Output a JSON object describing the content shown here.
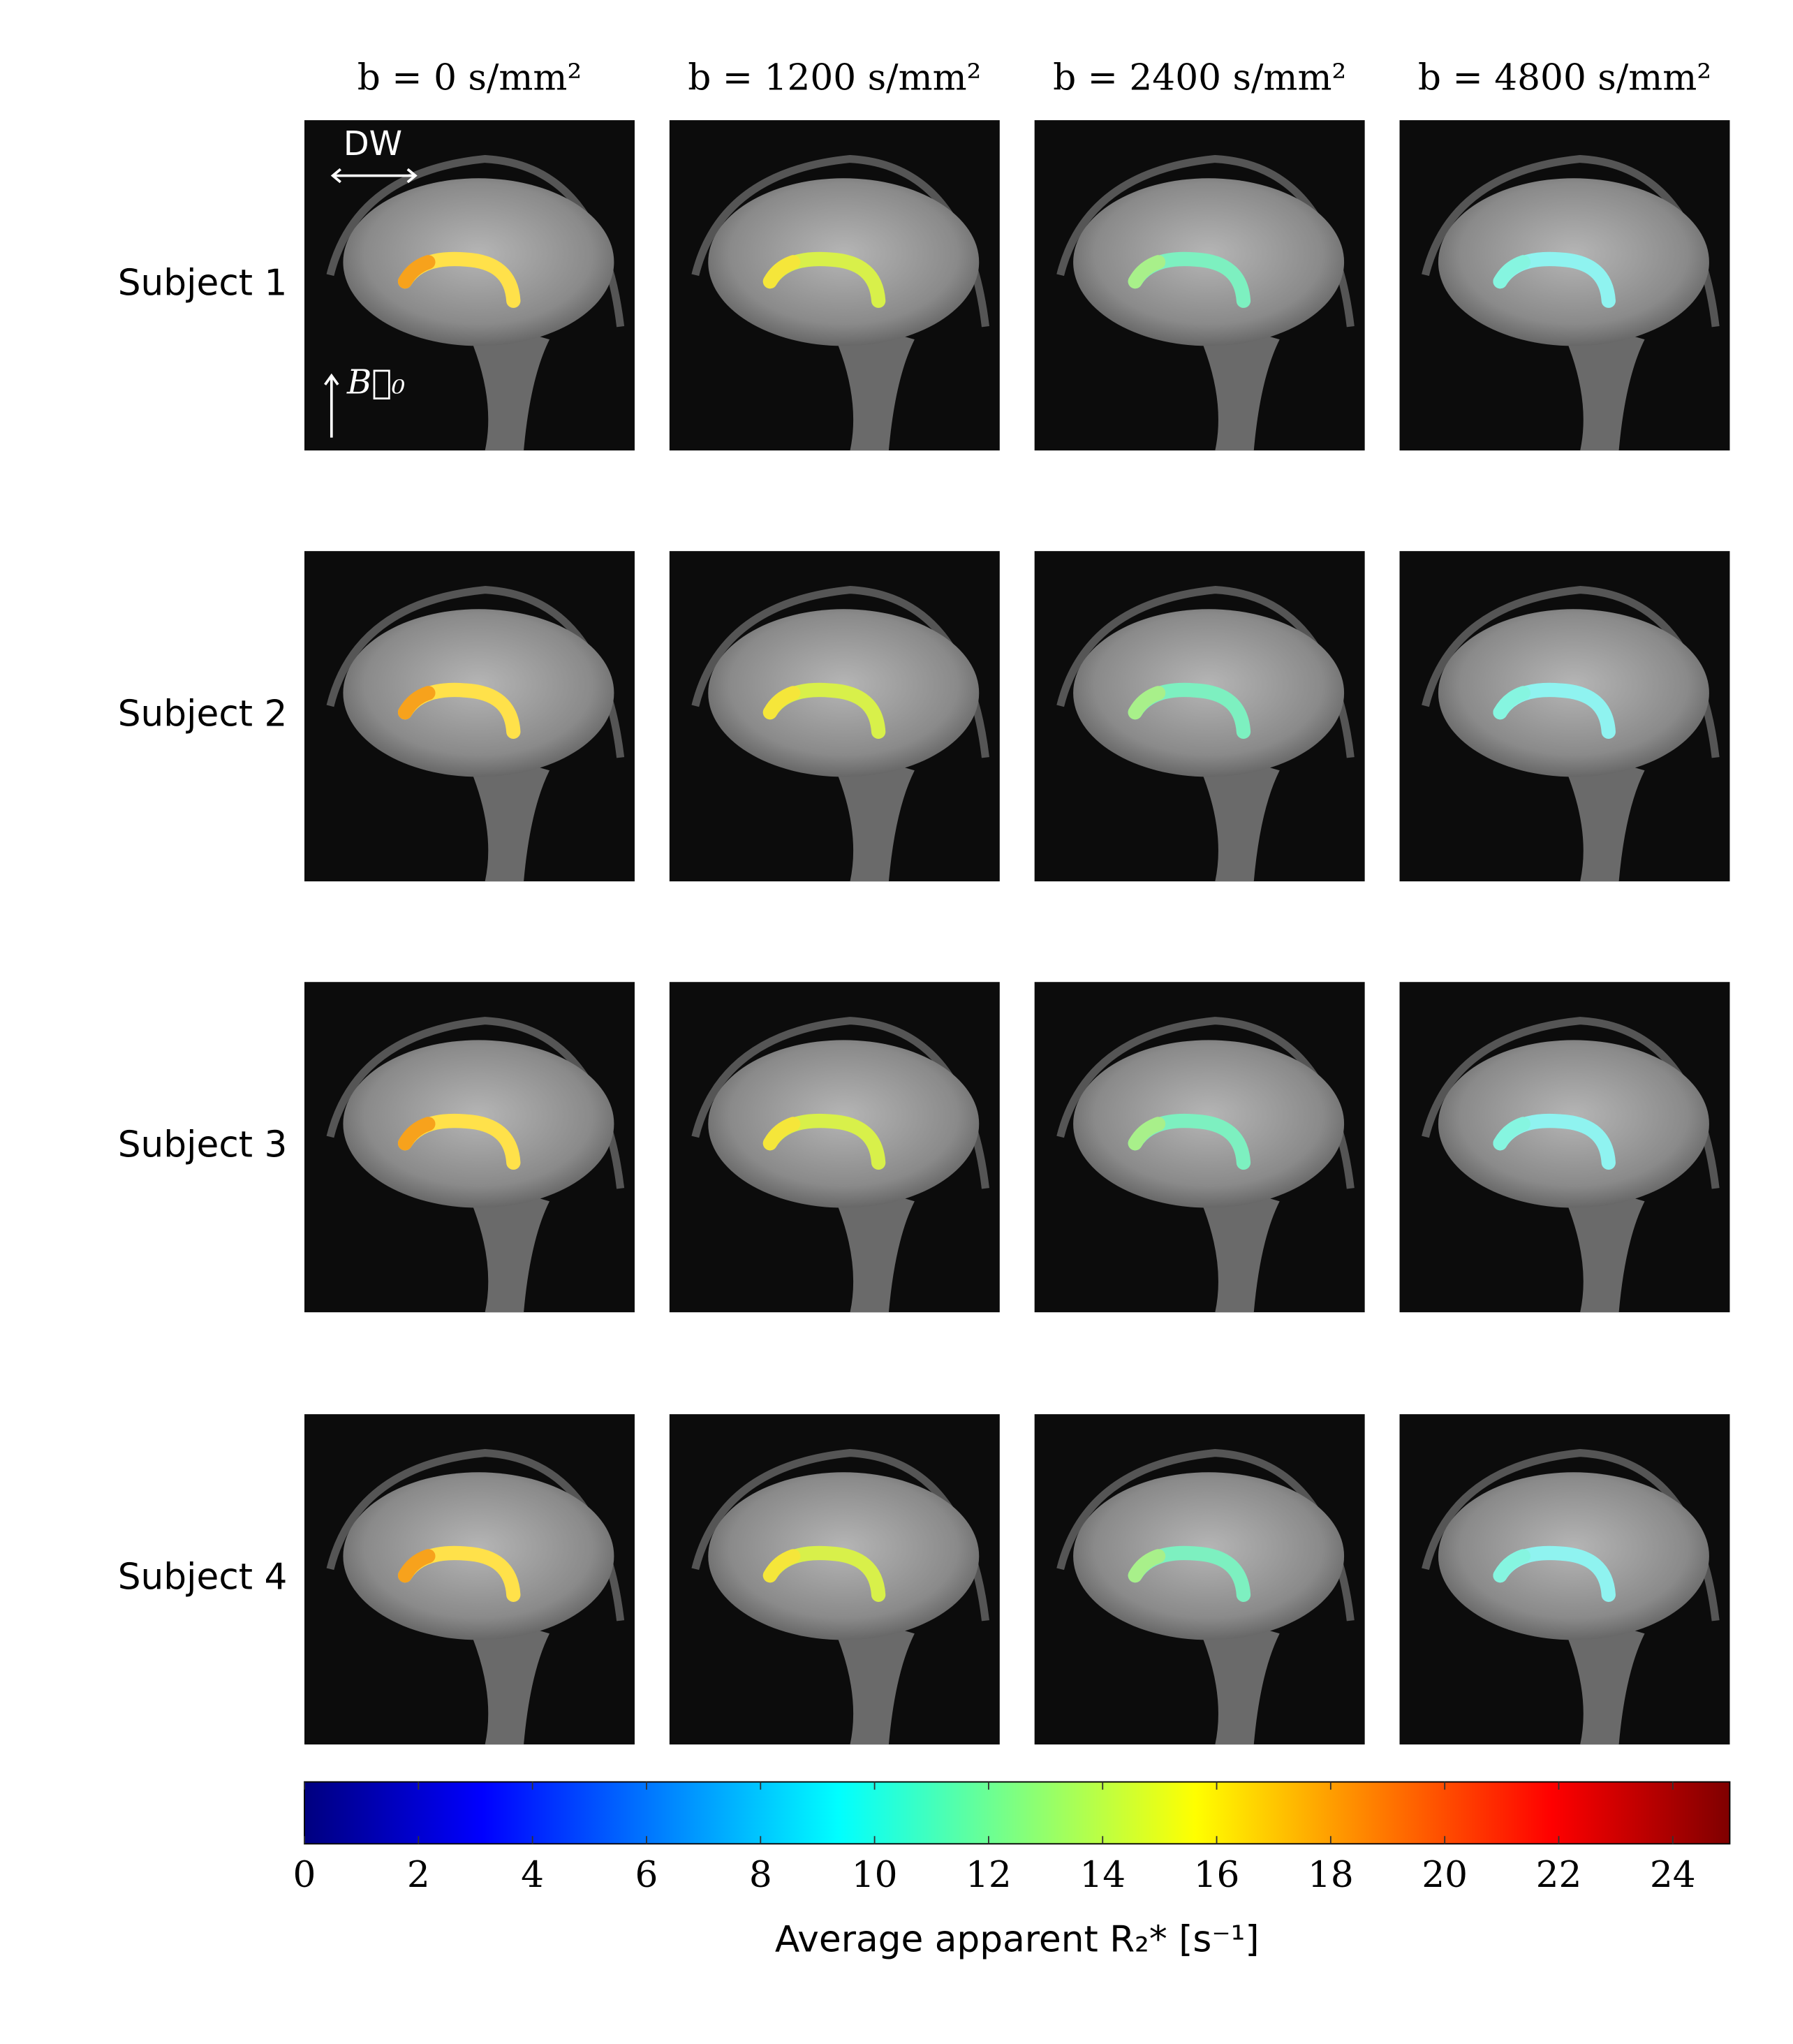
{
  "column_headers": [
    "b = 0 s/mm²",
    "b = 1200 s/mm²",
    "b = 2400 s/mm²",
    "b = 4800 s/mm²"
  ],
  "row_labels": [
    "Subject 1",
    "Subject 2",
    "Subject 3",
    "Subject 4"
  ],
  "annotations": {
    "readout": "DW",
    "field": "B⃗₀"
  },
  "chart_data": {
    "type": "colorbar",
    "colormap": "jet",
    "xlim": [
      0,
      25
    ],
    "xticks": [
      0,
      2,
      4,
      6,
      8,
      10,
      12,
      14,
      16,
      18,
      20,
      22,
      24
    ],
    "xlabel": "Average apparent R₂* [s⁻¹]"
  }
}
